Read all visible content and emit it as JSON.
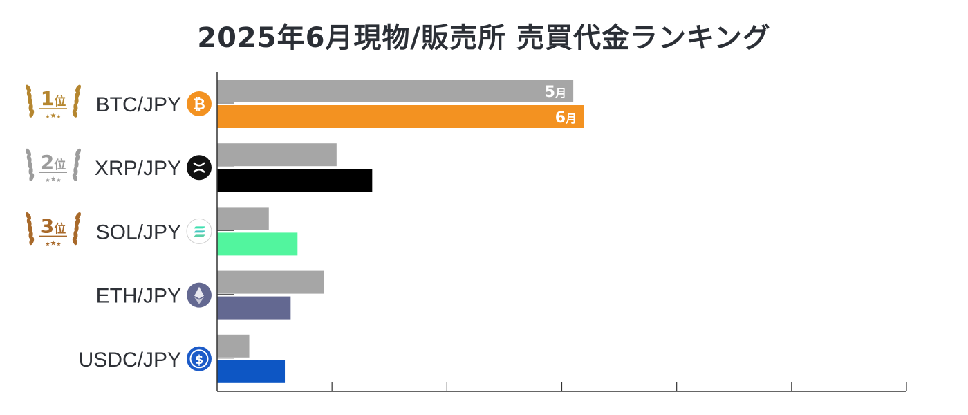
{
  "title": "2025年6月現物/販売所 売買代金ランキング",
  "colors": {
    "may_bar": "#a6a6a6",
    "axis": "#333333",
    "gold": "#b5862f",
    "silver": "#9c9c9c",
    "bronze": "#a8692a"
  },
  "chart_data": {
    "type": "bar",
    "orientation": "horizontal",
    "title": "2025年6月現物/販売所 売買代金ランキング",
    "categories": [
      "BTC/JPY",
      "XRP/JPY",
      "SOL/JPY",
      "ETH/JPY",
      "USDC/JPY"
    ],
    "series": [
      {
        "name": "5月",
        "color": "#a6a6a6",
        "values": [
          31,
          10.4,
          4.5,
          9.3,
          2.8
        ]
      },
      {
        "name": "6月",
        "color_by_category": [
          "#f39221",
          "#000000",
          "#52f59e",
          "#636891",
          "#0d56c4"
        ],
        "values": [
          31.9,
          13.5,
          7,
          6.4,
          5.9
        ]
      }
    ],
    "xlim": [
      0,
      60
    ],
    "x_ticks": 6,
    "xlabel": "",
    "ylabel": "",
    "grid": false,
    "legend": "inline labels on first category bars",
    "ranks": [
      {
        "category": "BTC/JPY",
        "label": "1位",
        "medal": "gold"
      },
      {
        "category": "XRP/JPY",
        "label": "2位",
        "medal": "silver"
      },
      {
        "category": "SOL/JPY",
        "label": "3位",
        "medal": "bronze"
      }
    ],
    "icons": [
      "bitcoin-icon",
      "xrp-icon",
      "solana-icon",
      "ethereum-icon",
      "usdc-icon"
    ]
  }
}
